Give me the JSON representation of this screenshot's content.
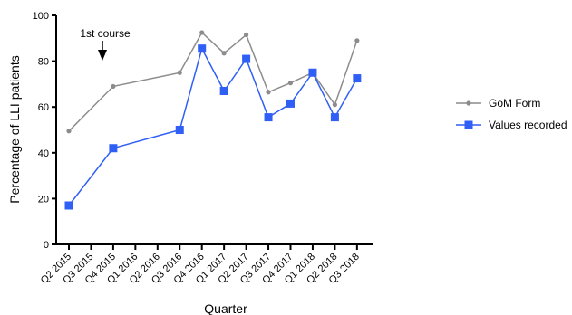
{
  "chart_data": {
    "type": "line",
    "categories": [
      "Q2 2015",
      "Q3 2015",
      "Q4 2015",
      "Q1 2016",
      "Q2 2016",
      "Q3 2016",
      "Q4 2016",
      "Q1 2017",
      "Q2 2017",
      "Q3 2017",
      "Q4 2017",
      "Q1 2018",
      "Q2 2018",
      "Q3 2018"
    ],
    "series": [
      {
        "name": "GoM Form",
        "color": "#8c8c8c",
        "marker": "circle",
        "values": [
          49.5,
          null,
          69,
          null,
          null,
          75,
          92.5,
          83.5,
          91.5,
          66.5,
          70.5,
          75,
          61,
          89
        ]
      },
      {
        "name": "Values recorded",
        "color": "#2f5ff5",
        "marker": "square",
        "values": [
          17,
          null,
          42,
          null,
          null,
          50,
          85.5,
          67,
          81,
          55.5,
          61.5,
          75,
          55.5,
          72.5
        ]
      }
    ],
    "xlabel": "Quarter",
    "ylabel": "Percentage of LLI patients",
    "ylim": [
      0,
      100
    ],
    "yticks": [
      "0",
      "20",
      "40",
      "60",
      "80",
      "100"
    ],
    "grid": false,
    "legend_position": "right",
    "annotation": {
      "text": "1st course",
      "category": "Q3 2015",
      "arrow": "down"
    }
  }
}
